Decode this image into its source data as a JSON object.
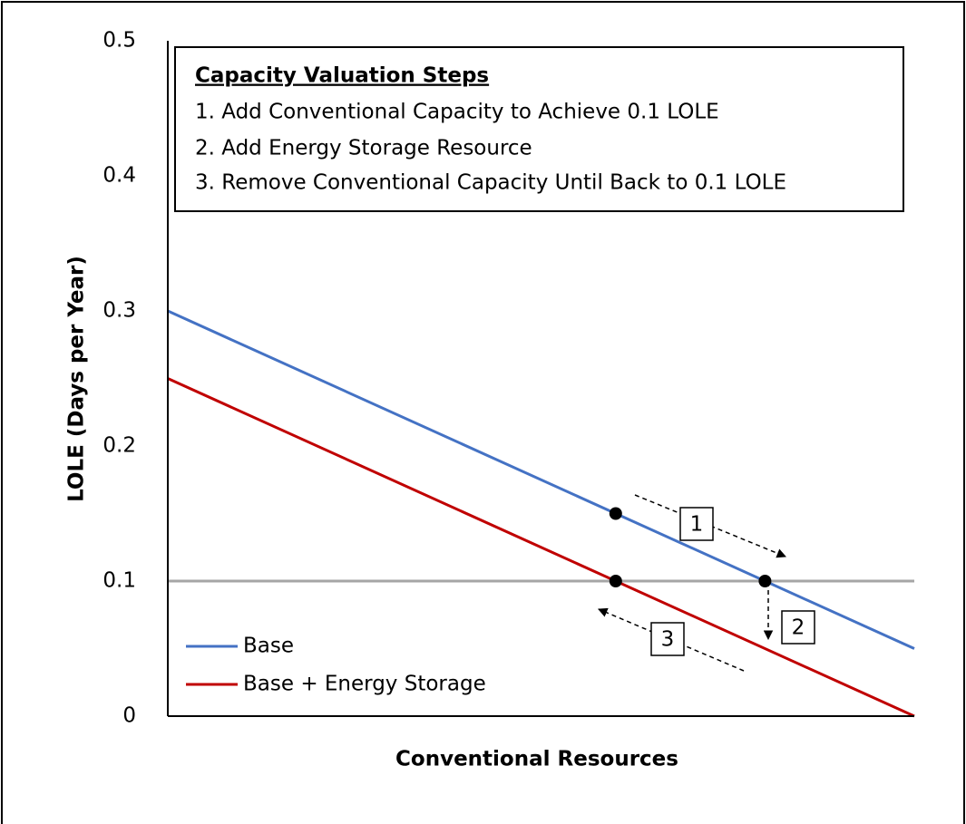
{
  "chart_data": {
    "type": "line",
    "ylabel": "LOLE (Days per Year)",
    "xlabel": "Conventional Resources",
    "x": [
      0,
      1
    ],
    "xlim": [
      0,
      1
    ],
    "ylim": [
      0,
      0.5
    ],
    "yticks": [
      0,
      0.1,
      0.2,
      0.3,
      0.4,
      0.5
    ],
    "series": [
      {
        "name": "Base",
        "color": "#4472c4",
        "values": [
          0.3,
          0.05
        ]
      },
      {
        "name": "Base + Energy Storage",
        "color": "#c00000",
        "values": [
          0.25,
          0
        ]
      }
    ],
    "reference_line": {
      "value": 0.1,
      "color": "#a6a6a6"
    },
    "points": {
      "x": [
        0.6,
        0.6,
        0.8
      ],
      "y": [
        0.15,
        0.1,
        0.1
      ],
      "color": "#000000"
    },
    "legend": "lower left",
    "annotation_box": {
      "title": "Capacity Valuation Steps",
      "lines": [
        "1. Add Conventional Capacity to Achieve 0.1 LOLE",
        "2. Add Energy Storage Resource",
        "3. Remove Conventional Capacity Until Back to 0.1 LOLE"
      ]
    },
    "step_labels": [
      "1",
      "2",
      "3"
    ]
  }
}
